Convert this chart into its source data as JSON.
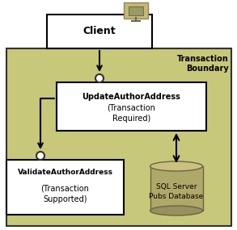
{
  "bg_color": "#ffffff",
  "transaction_bg": "#c8c87a",
  "transaction_border": "#333333",
  "box_bg": "#ffffff",
  "box_border": "#000000",
  "text_color": "#000000",
  "title": "Transaction\nBoundary",
  "client_label": "Client",
  "update_line1": "UpdateAuthorAddress",
  "update_line2": "(Transaction\nRequired)",
  "validate_line1": "ValidateAuthorAddress",
  "validate_line2": "(Transaction\nSupported)",
  "db_label": "SQL Server\nPubs Database",
  "figsize": [
    2.93,
    2.85
  ],
  "dpi": 100
}
